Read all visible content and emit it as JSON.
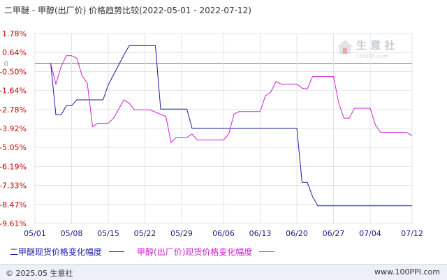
{
  "title": "二甲醚 - 甲醇(出厂价) 价格趋势比较(2022-05-01 - 2022-07-12)",
  "footer": {
    "copyright": "© 2025.05 生意社",
    "url": "www.100PPI.com"
  },
  "watermark": {
    "text": "生 意 社",
    "url": "100PPI.com"
  },
  "chart_data": {
    "type": "line",
    "title": "二甲醚 - 甲醇(出厂价) 价格趋势比较(2022-05-01 - 2022-07-12)",
    "x_ticks": [
      "05/01",
      "05/08",
      "05/15",
      "05/22",
      "05/29",
      "06/06",
      "06/13",
      "06/20",
      "06/27",
      "07/04",
      "07/12"
    ],
    "y_ticks": [
      "1.78%",
      "0.64%",
      "-0.50%",
      "-1.64%",
      "-2.78%",
      "-3.92%",
      "-5.05%",
      "-6.19%",
      "-7.33%",
      "-8.47%",
      "-9.61%"
    ],
    "ylim": [
      -9.61,
      1.78
    ],
    "zero_line": true,
    "grid": true,
    "legend_position": "bottom-left",
    "series": [
      {
        "name": "二甲醚现货价格变化幅度",
        "color": "#1a1aaa",
        "points": [
          [
            "05/01",
            0.0
          ],
          [
            "05/04",
            0.0
          ],
          [
            "05/05",
            -3.1
          ],
          [
            "05/06",
            -3.1
          ],
          [
            "05/07",
            -2.55
          ],
          [
            "05/08",
            -2.55
          ],
          [
            "05/09",
            -2.2
          ],
          [
            "05/14",
            -2.2
          ],
          [
            "05/15",
            -1.3
          ],
          [
            "05/18",
            0.5
          ],
          [
            "05/19",
            1.05
          ],
          [
            "05/24",
            1.05
          ],
          [
            "05/25",
            -2.75
          ],
          [
            "05/30",
            -2.75
          ],
          [
            "05/31",
            -3.9
          ],
          [
            "06/20",
            -3.9
          ],
          [
            "06/21",
            -7.15
          ],
          [
            "06/22",
            -7.15
          ],
          [
            "06/23",
            -8.0
          ],
          [
            "06/24",
            -8.55
          ],
          [
            "07/12",
            -8.55
          ]
        ]
      },
      {
        "name": "甲醇(出厂价)现货价格变化幅度",
        "color": "#cc22cc",
        "points": [
          [
            "05/01",
            0.0
          ],
          [
            "05/04",
            0.0
          ],
          [
            "05/05",
            -1.25
          ],
          [
            "05/06",
            -0.2
          ],
          [
            "05/07",
            0.45
          ],
          [
            "05/08",
            0.45
          ],
          [
            "05/09",
            0.3
          ],
          [
            "05/10",
            -0.75
          ],
          [
            "05/11",
            -1.2
          ],
          [
            "05/12",
            -3.8
          ],
          [
            "05/13",
            -3.6
          ],
          [
            "05/15",
            -3.6
          ],
          [
            "05/16",
            -3.3
          ],
          [
            "05/18",
            -2.2
          ],
          [
            "05/19",
            -2.4
          ],
          [
            "05/20",
            -2.8
          ],
          [
            "05/23",
            -2.8
          ],
          [
            "05/26",
            -3.2
          ],
          [
            "05/27",
            -4.75
          ],
          [
            "05/28",
            -4.45
          ],
          [
            "05/30",
            -4.45
          ],
          [
            "05/31",
            -4.25
          ],
          [
            "06/01",
            -4.6
          ],
          [
            "06/06",
            -4.6
          ],
          [
            "06/07",
            -4.25
          ],
          [
            "06/08",
            -3.05
          ],
          [
            "06/09",
            -2.9
          ],
          [
            "06/13",
            -2.9
          ],
          [
            "06/14",
            -1.95
          ],
          [
            "06/15",
            -1.75
          ],
          [
            "06/16",
            -1.1
          ],
          [
            "06/17",
            -1.25
          ],
          [
            "06/20",
            -1.25
          ],
          [
            "06/21",
            -1.5
          ],
          [
            "06/22",
            -1.55
          ],
          [
            "06/23",
            -0.8
          ],
          [
            "06/24",
            -0.8
          ],
          [
            "06/27",
            -0.8
          ],
          [
            "06/28",
            -2.4
          ],
          [
            "06/29",
            -3.3
          ],
          [
            "06/30",
            -3.3
          ],
          [
            "07/01",
            -2.7
          ],
          [
            "07/03",
            -2.7
          ],
          [
            "07/04",
            -2.7
          ],
          [
            "07/05",
            -3.7
          ],
          [
            "07/06",
            -4.15
          ],
          [
            "07/11",
            -4.15
          ],
          [
            "07/12",
            -4.35
          ]
        ]
      }
    ]
  }
}
